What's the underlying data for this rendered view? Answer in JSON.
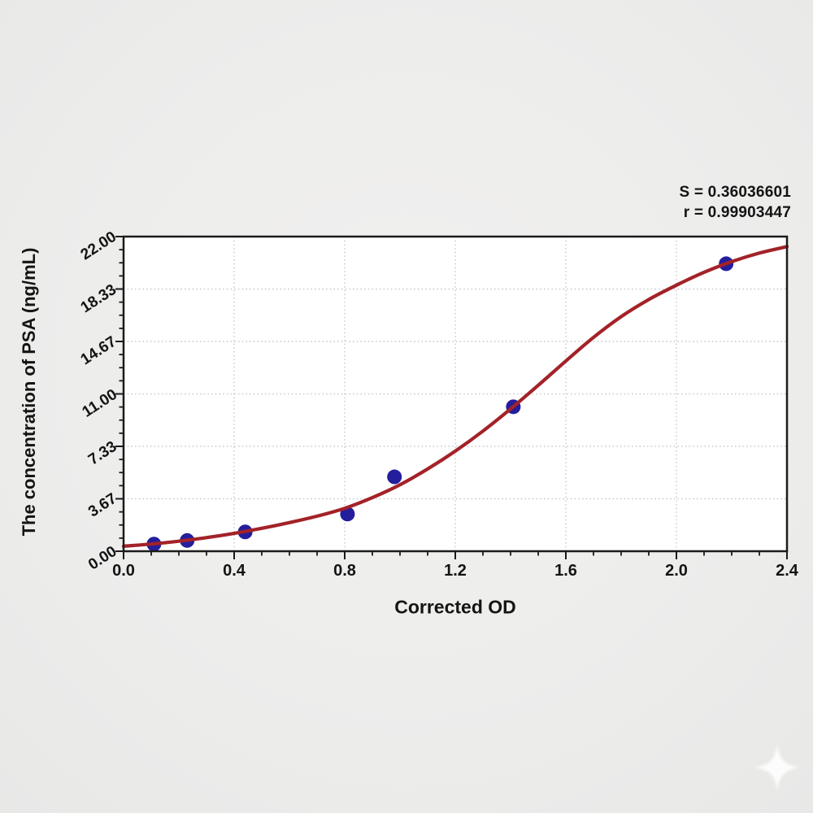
{
  "chart_data": {
    "type": "scatter",
    "title": "",
    "xlabel": "Corrected OD",
    "ylabel": "The concentration of PSA (ng/mL)",
    "xlim": [
      0,
      2.4
    ],
    "ylim": [
      0,
      22
    ],
    "grid": true,
    "grid_style": "dotted",
    "x_major_ticks": [
      0,
      0.4,
      0.8,
      1.2,
      1.6,
      2.0,
      2.4
    ],
    "x_tick_labels": [
      "0.0",
      "0.4",
      "0.8",
      "1.2",
      "1.6",
      "2.0",
      "2.4"
    ],
    "x_minor_per_major": 3,
    "y_major_ticks": [
      0,
      3.6667,
      7.3333,
      11,
      14.6667,
      18.3333,
      22
    ],
    "y_tick_labels": [
      "0.00",
      "3.67",
      "7.33",
      "11.00",
      "14.67",
      "18.33",
      "22.00"
    ],
    "y_minor_per_major": 3,
    "annotations": [
      "S = 0.36036601",
      "r = 0.99903447"
    ],
    "stats": {
      "S": "0.36036601",
      "r": "0.99903447"
    },
    "colors": {
      "curve": "#a32228",
      "point": "#241e9c",
      "grid": "#c7c7c7",
      "axis": "#1b1b1b",
      "plot_bg": "#ffffff",
      "text": "#141414"
    },
    "series": [
      {
        "name": "standard-points",
        "type": "scatter",
        "points": [
          [
            0.11,
            0.5
          ],
          [
            0.23,
            0.75
          ],
          [
            0.44,
            1.35
          ],
          [
            0.81,
            2.6
          ],
          [
            0.98,
            5.2
          ],
          [
            1.41,
            10.1
          ],
          [
            2.18,
            20.1
          ]
        ]
      },
      {
        "name": "fitted-curve",
        "type": "line",
        "points": [
          [
            0,
            0.35
          ],
          [
            0.1,
            0.5
          ],
          [
            0.2,
            0.7
          ],
          [
            0.3,
            0.95
          ],
          [
            0.4,
            1.25
          ],
          [
            0.5,
            1.6
          ],
          [
            0.6,
            2.0
          ],
          [
            0.7,
            2.45
          ],
          [
            0.8,
            3.0
          ],
          [
            0.9,
            3.75
          ],
          [
            1.0,
            4.65
          ],
          [
            1.1,
            5.75
          ],
          [
            1.2,
            7.0
          ],
          [
            1.3,
            8.4
          ],
          [
            1.4,
            9.95
          ],
          [
            1.5,
            11.6
          ],
          [
            1.6,
            13.3
          ],
          [
            1.7,
            14.95
          ],
          [
            1.8,
            16.4
          ],
          [
            1.9,
            17.6
          ],
          [
            2.0,
            18.6
          ],
          [
            2.1,
            19.5
          ],
          [
            2.2,
            20.25
          ],
          [
            2.3,
            20.85
          ],
          [
            2.4,
            21.3
          ]
        ]
      }
    ]
  },
  "watermark": {
    "shape": "four-point-star-sparkle"
  }
}
